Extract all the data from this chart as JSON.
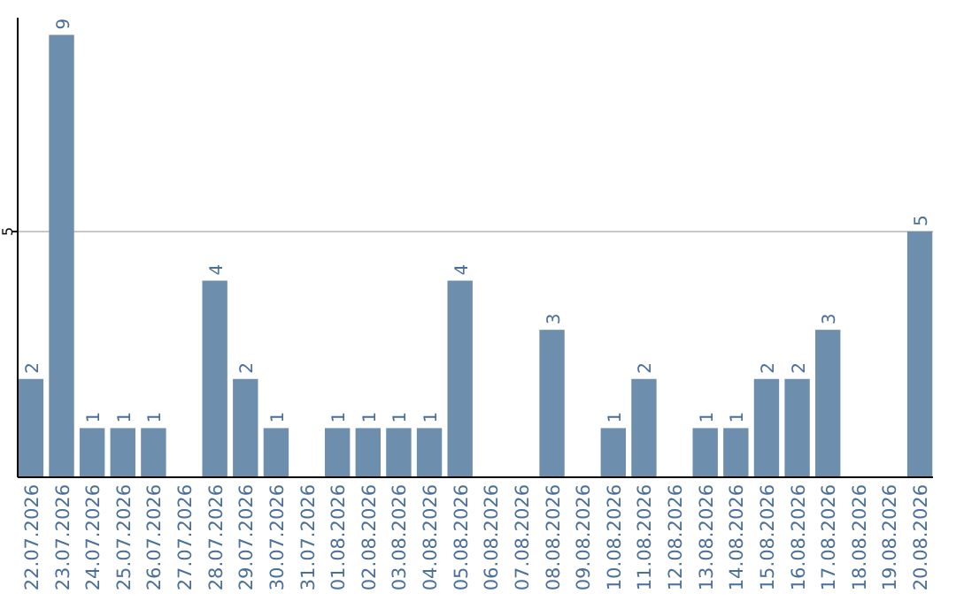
{
  "chart_data": {
    "type": "bar",
    "categories": [
      "22.07.2026",
      "23.07.2026",
      "24.07.2026",
      "25.07.2026",
      "26.07.2026",
      "27.07.2026",
      "28.07.2026",
      "29.07.2026",
      "30.07.2026",
      "31.07.2026",
      "01.08.2026",
      "02.08.2026",
      "03.08.2026",
      "04.08.2026",
      "05.08.2026",
      "06.08.2026",
      "07.08.2026",
      "08.08.2026",
      "09.08.2026",
      "10.08.2026",
      "11.08.2026",
      "12.08.2026",
      "13.08.2026",
      "14.08.2026",
      "15.08.2026",
      "16.08.2026",
      "17.08.2026",
      "18.08.2026",
      "19.08.2026",
      "20.08.2026"
    ],
    "values": [
      2,
      9,
      1,
      1,
      1,
      null,
      4,
      2,
      1,
      null,
      1,
      1,
      1,
      1,
      4,
      null,
      null,
      3,
      null,
      1,
      2,
      null,
      1,
      1,
      2,
      2,
      3,
      null,
      null,
      5
    ],
    "color": "#6e8eae",
    "ylim": [
      0,
      9.35
    ],
    "yticks": [
      5
    ],
    "grid": "y",
    "data_labels": true
  }
}
